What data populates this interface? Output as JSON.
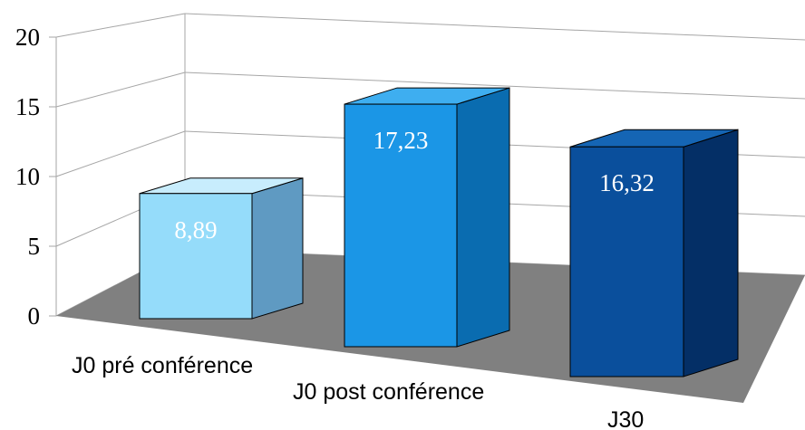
{
  "chart_data": {
    "type": "bar",
    "categories": [
      "J0 pré conférence",
      "J0 post conférence",
      "J30"
    ],
    "values": [
      8.89,
      17.23,
      16.32
    ],
    "data_labels": [
      "8,89",
      "17,23",
      "16,32"
    ],
    "ylim": [
      0,
      20
    ],
    "yticks": [
      0,
      5,
      10,
      15,
      20
    ],
    "grid": true,
    "legend": "none",
    "bar_colors": [
      {
        "front": "#95dcfa",
        "side": "#5f9ac2",
        "top": "#c8edfd"
      },
      {
        "front": "#1b96e6",
        "side": "#0a6cb0",
        "top": "#3eaef0"
      },
      {
        "front": "#0a4f9c",
        "side": "#042f66",
        "top": "#1565b4"
      }
    ],
    "floor_color": "#808080",
    "grid_color": "#a6a6a6"
  }
}
